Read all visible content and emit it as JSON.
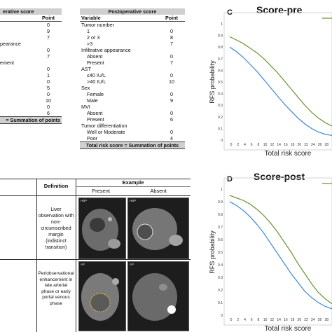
{
  "table_pre": {
    "header": "erative score",
    "col_point": "Point",
    "rows": [
      {
        "label": "",
        "point": "0",
        "indent": false
      },
      {
        "label": "",
        "point": "9",
        "indent": false
      },
      {
        "label": "",
        "point": "7",
        "indent": false
      },
      {
        "label": "",
        "point": "",
        "indent": false
      },
      {
        "label": "pearance",
        "point": "",
        "indent": false
      },
      {
        "label": "",
        "point": "0",
        "indent": false
      },
      {
        "label": "",
        "point": "7",
        "indent": false
      },
      {
        "label": "ement",
        "point": "",
        "indent": false
      },
      {
        "label": "",
        "point": "0",
        "indent": false
      },
      {
        "label": "",
        "point": "1",
        "indent": false
      },
      {
        "label": "",
        "point": "",
        "indent": false
      },
      {
        "label": "",
        "point": "0",
        "indent": false
      },
      {
        "label": "",
        "point": "5",
        "indent": false
      },
      {
        "label": "",
        "point": "",
        "indent": false
      },
      {
        "label": "",
        "point": "0",
        "indent": false
      },
      {
        "label": "",
        "point": "10",
        "indent": false
      },
      {
        "label": "",
        "point": "",
        "indent": false
      },
      {
        "label": "",
        "point": "0",
        "indent": false
      },
      {
        "label": "",
        "point": "6",
        "indent": false
      }
    ],
    "footer": "= Summation of points"
  },
  "table_post": {
    "header": "Postoperative score",
    "col_variable": "Variable",
    "col_point": "Point",
    "rows": [
      {
        "label": "Tumor number",
        "point": "",
        "indent": false
      },
      {
        "label": "1",
        "point": "0",
        "indent": true
      },
      {
        "label": "2 or 3",
        "point": "8",
        "indent": true
      },
      {
        "label": ">3",
        "point": "7",
        "indent": true
      },
      {
        "label": "Infiltrative appearance",
        "point": "",
        "indent": false
      },
      {
        "label": "Absent",
        "point": "0",
        "indent": true
      },
      {
        "label": "Present",
        "point": "7",
        "indent": true
      },
      {
        "label": "AST",
        "point": "",
        "indent": false
      },
      {
        "label": "≤40 IU/L",
        "point": "0",
        "indent": true
      },
      {
        "label": ">40 IU/L",
        "point": "10",
        "indent": true
      },
      {
        "label": "Sex",
        "point": "",
        "indent": false
      },
      {
        "label": "Female",
        "point": "0",
        "indent": true
      },
      {
        "label": "Male",
        "point": "9",
        "indent": true
      },
      {
        "label": "MVI",
        "point": "",
        "indent": false
      },
      {
        "label": "Absent",
        "point": "0",
        "indent": true
      },
      {
        "label": "Present",
        "point": "6",
        "indent": true
      },
      {
        "label": "Tumor differentiation",
        "point": "",
        "indent": false
      },
      {
        "label": "Well or Moderate",
        "point": "0",
        "indent": true
      },
      {
        "label": "Poor",
        "point": "4",
        "indent": true
      }
    ],
    "footer": "Total risk score = Summation of points"
  },
  "table_b": {
    "col_definition": "Definition",
    "col_example": "Example",
    "col_present": "Present",
    "col_absent": "Absent",
    "row1_definition": "Liver observation with non-circumscribed margin (indistinct transition)",
    "row2_definition": "Periobservational enhancement in late arterial phase or early portal venous phase",
    "img_label_hbp": "HBP",
    "img_label_ap": "AP"
  },
  "chart_c": {
    "letter": "C",
    "title": "Score-pre"
  },
  "chart_d": {
    "letter": "D",
    "title": "Score-post"
  },
  "chart_data": [
    {
      "type": "line",
      "title": "Score-pre",
      "xlabel": "Total risk score",
      "ylabel": "RFS probability",
      "x_ticks": [
        "0",
        "2",
        "4",
        "6",
        "8",
        "10",
        "12",
        "14",
        "16",
        "18",
        "20",
        "22",
        "24",
        "26",
        "28"
      ],
      "y_ticks": [
        "0",
        "0.1",
        "0.2",
        "0.3",
        "0.4",
        "0.5",
        "0.6",
        "0.7",
        "0.8",
        "0.9",
        "1"
      ],
      "xlim": [
        0,
        30
      ],
      "ylim": [
        0,
        1
      ],
      "series": [
        {
          "color": "#6f9a3c",
          "x": [
            0,
            2,
            4,
            6,
            8,
            10,
            12,
            14,
            16,
            18,
            20,
            22,
            24,
            26,
            28,
            30
          ],
          "y": [
            0.89,
            0.86,
            0.83,
            0.79,
            0.75,
            0.7,
            0.64,
            0.58,
            0.51,
            0.44,
            0.37,
            0.3,
            0.24,
            0.19,
            0.15,
            0.12
          ]
        },
        {
          "color": "#4a90d9",
          "x": [
            0,
            2,
            4,
            6,
            8,
            10,
            12,
            14,
            16,
            18,
            20,
            22,
            24,
            26,
            28,
            30
          ],
          "y": [
            0.8,
            0.76,
            0.71,
            0.65,
            0.59,
            0.52,
            0.45,
            0.38,
            0.31,
            0.25,
            0.19,
            0.14,
            0.1,
            0.07,
            0.05,
            0.04
          ]
        }
      ]
    },
    {
      "type": "line",
      "title": "Score-post",
      "xlabel": "Total risk score",
      "ylabel": "RFS probability",
      "x_ticks": [
        "0",
        "2",
        "4",
        "6",
        "8",
        "10",
        "12",
        "14",
        "16",
        "18",
        "20",
        "22",
        "24",
        "26",
        "28"
      ],
      "y_ticks": [
        "0",
        "0.1",
        "0.2",
        "0.3",
        "0.4",
        "0.5",
        "0.6",
        "0.7",
        "0.8",
        "0.9",
        "1"
      ],
      "xlim": [
        0,
        30
      ],
      "ylim": [
        0,
        1
      ],
      "series": [
        {
          "color": "#6f9a3c",
          "x": [
            0,
            2,
            4,
            6,
            8,
            10,
            12,
            14,
            16,
            18,
            20,
            22,
            24,
            26,
            28,
            30
          ],
          "y": [
            0.95,
            0.93,
            0.91,
            0.88,
            0.84,
            0.79,
            0.73,
            0.66,
            0.58,
            0.5,
            0.41,
            0.33,
            0.25,
            0.18,
            0.13,
            0.09
          ]
        },
        {
          "color": "#4a90d9",
          "x": [
            0,
            2,
            4,
            6,
            8,
            10,
            12,
            14,
            16,
            18,
            20,
            22,
            24,
            26,
            28,
            30
          ],
          "y": [
            0.9,
            0.87,
            0.83,
            0.78,
            0.72,
            0.65,
            0.57,
            0.49,
            0.41,
            0.33,
            0.26,
            0.19,
            0.14,
            0.1,
            0.07,
            0.05
          ]
        }
      ]
    }
  ]
}
